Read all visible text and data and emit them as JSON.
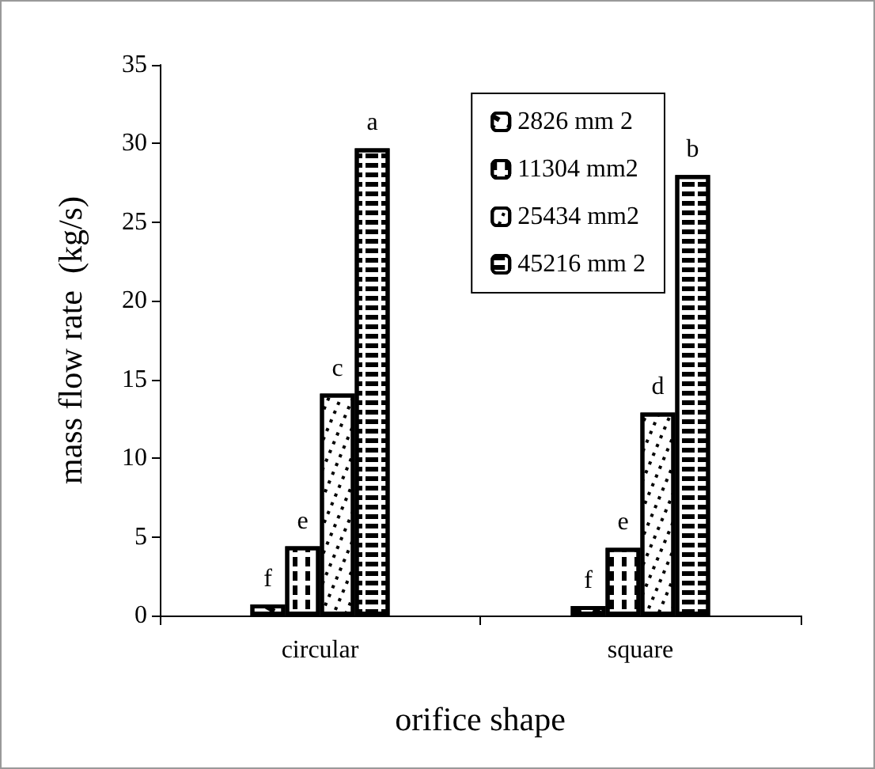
{
  "chart_data": {
    "type": "bar",
    "xlabel": "orifice shape",
    "ylabel": "mass flow rate  (kg/s)",
    "categories": [
      "circular",
      "square"
    ],
    "series": [
      {
        "name": "2826 mm 2",
        "color": "#ffffff",
        "values": [
          0.7,
          0.6
        ],
        "value_labels": [
          "f",
          "f"
        ]
      },
      {
        "name": "11304 mm2",
        "color": "#ffffff",
        "values": [
          4.4,
          4.3
        ],
        "value_labels": [
          "e",
          "e"
        ]
      },
      {
        "name": "25434 mm2",
        "color": "#ffffff",
        "values": [
          14.1,
          12.9
        ],
        "value_labels": [
          "c",
          "d"
        ]
      },
      {
        "name": "45216 mm 2",
        "color": "#ffffff",
        "values": [
          29.7,
          28.0
        ],
        "value_labels": [
          "a",
          "b"
        ]
      }
    ],
    "ylim": [
      0,
      35
    ],
    "yticks": [
      0,
      5,
      10,
      15,
      20,
      25,
      30,
      35
    ],
    "grid": false,
    "legend": "top right"
  }
}
